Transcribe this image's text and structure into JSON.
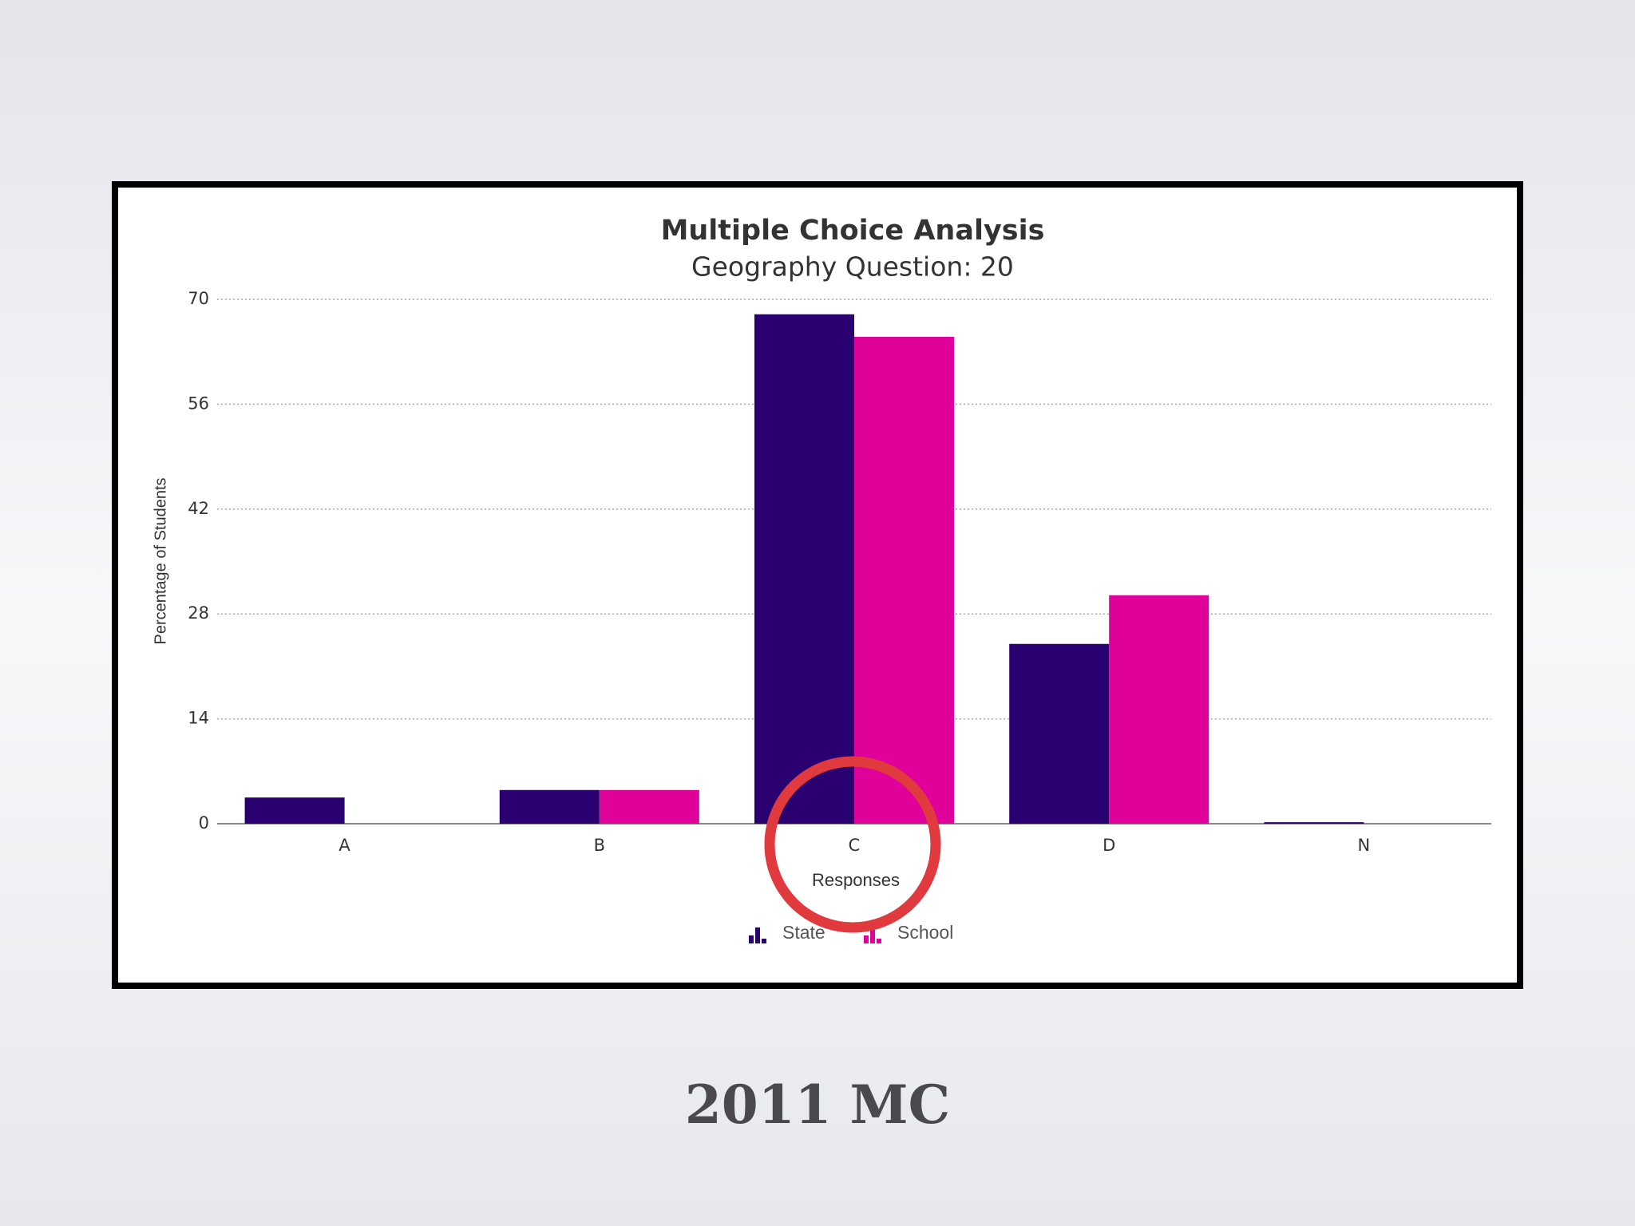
{
  "chart_data": {
    "type": "bar",
    "title": "Multiple Choice Analysis",
    "subtitle": "Geography Question: 20",
    "x_label": "Responses",
    "y_label": "Percentage of Students",
    "categories": [
      "A",
      "B",
      "C",
      "D",
      "N"
    ],
    "series": [
      {
        "name": "State",
        "color": "#2a0070",
        "values": [
          3.5,
          4.5,
          68,
          24,
          0.2
        ]
      },
      {
        "name": "School",
        "color": "#e0009a",
        "values": [
          0,
          4.5,
          65,
          30.5,
          0
        ]
      }
    ],
    "ylim": [
      0,
      70
    ],
    "yticks": [
      0,
      14,
      28,
      42,
      56,
      70
    ],
    "grid": true,
    "legend": "bottom"
  },
  "slide": {
    "caption": "2011 MC"
  }
}
